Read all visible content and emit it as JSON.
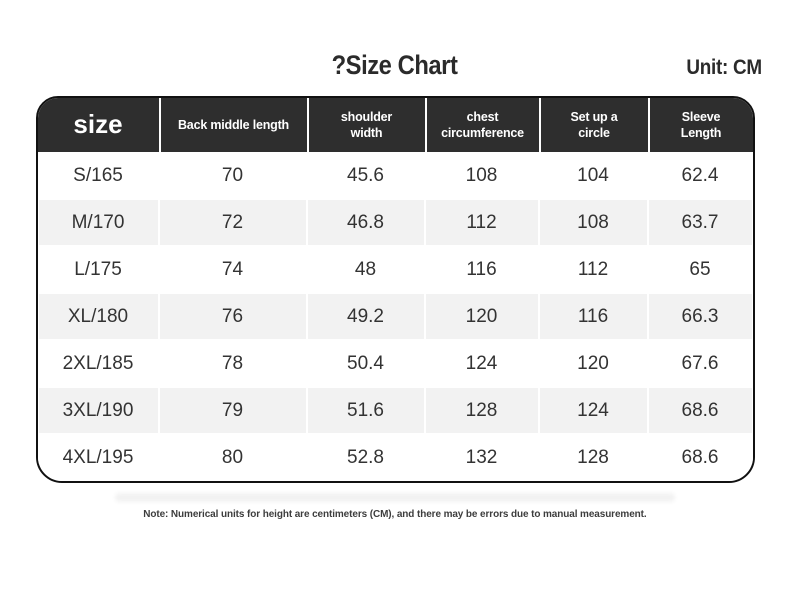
{
  "header": {
    "title": "?Size Chart",
    "unit": "Unit: CM"
  },
  "chart_data": {
    "type": "table",
    "title": "?Size Chart",
    "unit": "CM",
    "columns": [
      "size",
      "Back middle length",
      "shoulder\nwidth",
      "chest\ncircumference",
      "Set up a\ncircle",
      "Sleeve\nLength"
    ],
    "rows": [
      [
        "S/165",
        "70",
        "45.6",
        "108",
        "104",
        "62.4"
      ],
      [
        "M/170",
        "72",
        "46.8",
        "112",
        "108",
        "63.7"
      ],
      [
        "L/175",
        "74",
        "48",
        "116",
        "112",
        "65"
      ],
      [
        "XL/180",
        "76",
        "49.2",
        "120",
        "116",
        "66.3"
      ],
      [
        "2XL/185",
        "78",
        "50.4",
        "124",
        "120",
        "67.6"
      ],
      [
        "3XL/190",
        "79",
        "51.6",
        "128",
        "124",
        "68.6"
      ],
      [
        "4XL/195",
        "80",
        "52.8",
        "132",
        "128",
        "68.6"
      ]
    ]
  },
  "footer": {
    "note": "Note: Numerical units for height are centimeters (CM), and there may be errors due to manual measurement."
  },
  "colors": {
    "header_bg": "#2e2e2e",
    "header_text": "#ffffff",
    "row_alt_bg": "#f2f2f2",
    "border": "#111111",
    "body_text": "#333333"
  }
}
